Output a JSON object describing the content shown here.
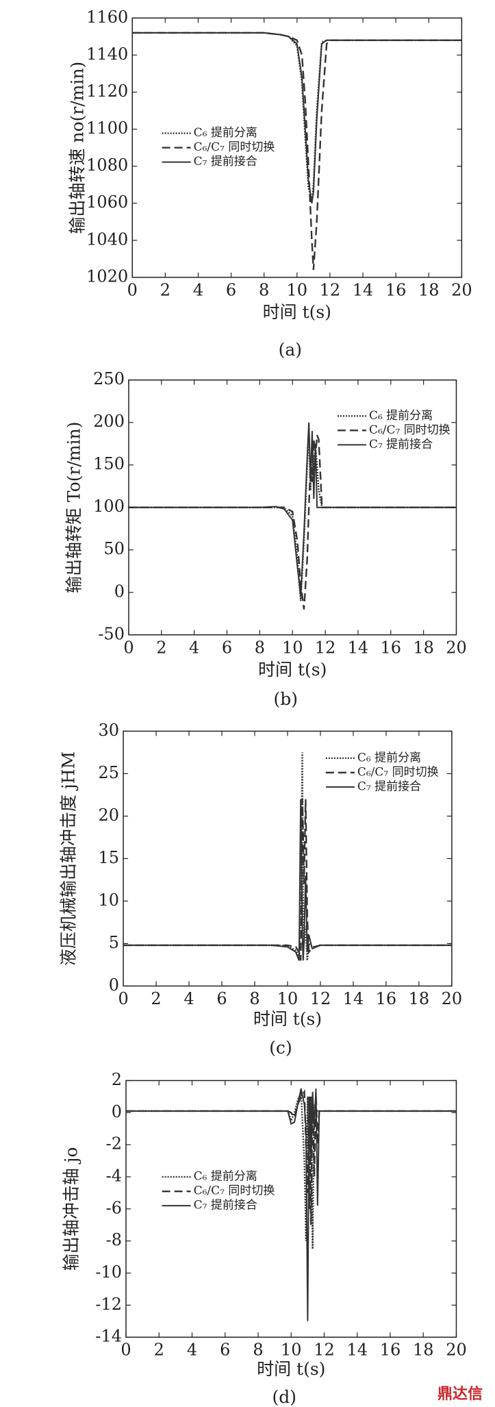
{
  "chart_data": [
    {
      "type": "line",
      "caption": "(a)",
      "xlabel": "时间 t(s)",
      "ylabel": "输出轴转速 no(r/min)",
      "xlim": [
        0,
        20
      ],
      "xticks": [
        0,
        2,
        4,
        6,
        8,
        10,
        12,
        14,
        16,
        18,
        20
      ],
      "ylim": [
        1020,
        1160
      ],
      "yticks": [
        1020,
        1040,
        1060,
        1080,
        1100,
        1120,
        1140,
        1160
      ],
      "x": [
        0,
        2,
        4,
        6,
        8,
        9,
        9.5,
        10,
        10.3,
        10.5,
        10.7,
        10.9,
        11,
        11.2,
        11.5,
        11.8,
        12,
        14,
        16,
        18,
        20
      ],
      "series": [
        {
          "name": "C₆ 提前分离",
          "color": "#333333",
          "style": "dotted",
          "values": [
            1152,
            1152,
            1152,
            1152,
            1152,
            1151,
            1150,
            1145,
            1125,
            1095,
            1068,
            1062,
            1070,
            1110,
            1147,
            1148,
            1148,
            1148,
            1148,
            1148,
            1148
          ]
        },
        {
          "name": "C₆/C₇ 同时切换",
          "color": "#333333",
          "style": "dashed",
          "values": [
            1152,
            1152,
            1152,
            1152,
            1152,
            1151,
            1150,
            1148,
            1140,
            1115,
            1080,
            1040,
            1024,
            1050,
            1110,
            1146,
            1148,
            1148,
            1148,
            1148,
            1148
          ]
        },
        {
          "name": "C₇ 提前接合",
          "color": "#333333",
          "style": "solid",
          "values": [
            1152,
            1152,
            1152,
            1152,
            1152,
            1151,
            1150,
            1146,
            1128,
            1100,
            1072,
            1060,
            1066,
            1105,
            1146,
            1148,
            1148,
            1148,
            1148,
            1148,
            1148
          ]
        }
      ]
    },
    {
      "type": "line",
      "caption": "(b)",
      "xlabel": "时间 t(s)",
      "ylabel": "输出轴转矩 To(r/min)",
      "xlim": [
        0,
        20
      ],
      "xticks": [
        0,
        2,
        4,
        6,
        8,
        10,
        12,
        14,
        16,
        18,
        20
      ],
      "ylim": [
        -50,
        250
      ],
      "yticks": [
        -50,
        0,
        50,
        100,
        150,
        200,
        250
      ],
      "x": [
        0,
        2,
        4,
        6,
        8,
        9,
        9.5,
        10,
        10.3,
        10.5,
        10.7,
        10.9,
        11,
        11.1,
        11.2,
        11.3,
        11.4,
        11.5,
        11.6,
        11.8,
        12,
        14,
        16,
        18,
        20
      ],
      "series": [
        {
          "name": "C₆ 提前分离",
          "color": "#333333",
          "style": "dotted",
          "values": [
            100,
            100,
            100,
            100,
            100,
            100,
            99,
            90,
            40,
            -10,
            60,
            150,
            190,
            120,
            180,
            140,
            170,
            150,
            120,
            100,
            100,
            100,
            100,
            100,
            100
          ]
        },
        {
          "name": "C₆/C₇ 同时切换",
          "color": "#333333",
          "style": "dashed",
          "values": [
            100,
            100,
            100,
            100,
            100,
            100,
            100,
            95,
            60,
            10,
            -20,
            40,
            100,
            150,
            130,
            180,
            160,
            185,
            180,
            100,
            100,
            100,
            100,
            100,
            100
          ]
        },
        {
          "name": "C₇ 提前接合",
          "color": "#333333",
          "style": "solid",
          "values": [
            100,
            100,
            100,
            100,
            100,
            101,
            98,
            85,
            30,
            -5,
            70,
            160,
            200,
            130,
            190,
            110,
            175,
            100,
            100,
            100,
            100,
            100,
            100,
            100,
            100
          ]
        }
      ]
    },
    {
      "type": "line",
      "caption": "(c)",
      "xlabel": "时间 t(s)",
      "ylabel": "液压机械输出轴冲击度 jHM",
      "xlim": [
        0,
        20
      ],
      "xticks": [
        0,
        2,
        4,
        6,
        8,
        10,
        12,
        14,
        16,
        18,
        20
      ],
      "ylim": [
        0,
        30
      ],
      "yticks": [
        0,
        5,
        10,
        15,
        20,
        25,
        30
      ],
      "x": [
        0,
        2,
        4,
        6,
        8,
        9,
        10,
        10.5,
        10.7,
        10.8,
        10.85,
        10.9,
        10.95,
        11,
        11.1,
        11.2,
        11.3,
        11.5,
        12,
        14,
        16,
        18,
        20
      ],
      "series": [
        {
          "name": "C₆ 提前分离",
          "color": "#333333",
          "style": "dotted",
          "values": [
            4.8,
            4.8,
            4.8,
            4.8,
            4.8,
            4.8,
            4.7,
            4.2,
            3.5,
            8,
            20,
            27.5,
            10,
            5,
            7,
            3,
            5,
            4.6,
            4.8,
            4.8,
            4.8,
            4.8,
            4.8
          ]
        },
        {
          "name": "C₆/C₇ 同时切换",
          "color": "#333333",
          "style": "dashed",
          "values": [
            4.8,
            4.8,
            4.8,
            4.8,
            4.8,
            4.8,
            4.8,
            4.6,
            4,
            3,
            10,
            22,
            18,
            12,
            22,
            8,
            4,
            4.5,
            4.8,
            4.8,
            4.8,
            4.8,
            4.8
          ]
        },
        {
          "name": "C₇ 提前接合",
          "color": "#333333",
          "style": "solid",
          "values": [
            4.8,
            4.8,
            4.8,
            4.8,
            4.8,
            4.8,
            4.6,
            4,
            3,
            22,
            15,
            6,
            3,
            5,
            13,
            4,
            6,
            4.4,
            4.8,
            4.8,
            4.8,
            4.8,
            4.8
          ]
        }
      ]
    },
    {
      "type": "line",
      "caption": "(d)",
      "xlabel": "时间 t(s)",
      "ylabel": "输出轴冲击轴 jo",
      "xlim": [
        0,
        20
      ],
      "xticks": [
        0,
        2,
        4,
        6,
        8,
        10,
        12,
        14,
        16,
        18,
        20
      ],
      "ylim": [
        -14,
        2
      ],
      "yticks": [
        -14,
        -12,
        -10,
        -8,
        -6,
        -4,
        -2,
        0,
        2
      ],
      "x": [
        0,
        2,
        4,
        6,
        8,
        9,
        9.8,
        10,
        10.2,
        10.4,
        10.6,
        10.8,
        10.9,
        11,
        11.1,
        11.2,
        11.3,
        11.4,
        11.5,
        11.6,
        11.7,
        11.8,
        12,
        14,
        16,
        18,
        20
      ],
      "series": [
        {
          "name": "C₆ 提前分离",
          "color": "#333333",
          "style": "dotted",
          "values": [
            0.1,
            0.1,
            0.1,
            0.1,
            0.1,
            0.1,
            0.1,
            -0.5,
            0,
            0.8,
            1.2,
            -3,
            -8,
            1,
            -6,
            1,
            -8.5,
            0.5,
            0.1,
            0.1,
            0.1,
            0.1,
            0.1,
            0.1,
            0.1,
            0.1,
            0.1
          ]
        },
        {
          "name": "C₆/C₇ 同时切换",
          "color": "#333333",
          "style": "dashed",
          "values": [
            0.1,
            0.1,
            0.1,
            0.1,
            0.1,
            0.1,
            0.1,
            0,
            -0.3,
            0.5,
            1,
            1.3,
            -2,
            -5,
            1,
            -7,
            0.8,
            -4,
            1.2,
            -2,
            0.1,
            0.1,
            0.1,
            0.1,
            0.1,
            0.1,
            0.1
          ]
        },
        {
          "name": "C₇ 提前接合",
          "color": "#333333",
          "style": "solid",
          "values": [
            0.1,
            0.1,
            0.1,
            0.1,
            0.1,
            0.1,
            0.1,
            -0.7,
            -0.6,
            0.5,
            1.5,
            0.5,
            -1,
            -13,
            1,
            -3,
            1.3,
            -1,
            1.5,
            -5.8,
            0.1,
            0.1,
            0.1,
            0.1,
            0.1,
            0.1,
            0.1
          ]
        }
      ]
    }
  ],
  "watermark": "鼎达信"
}
